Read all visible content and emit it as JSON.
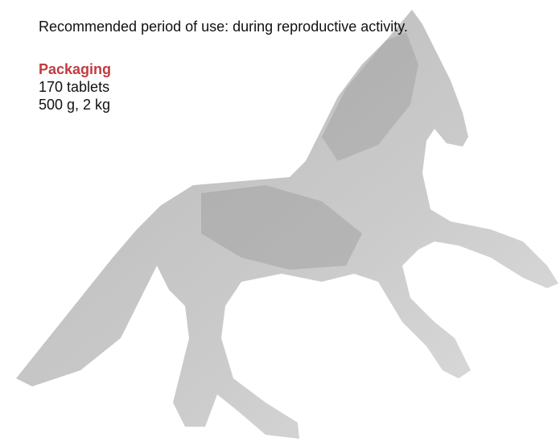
{
  "recommendation": "Recommended period of use: during reproductive activity.",
  "packaging": {
    "heading": "Packaging",
    "items": [
      "170 tablets",
      "500 g, 2 kg"
    ]
  }
}
